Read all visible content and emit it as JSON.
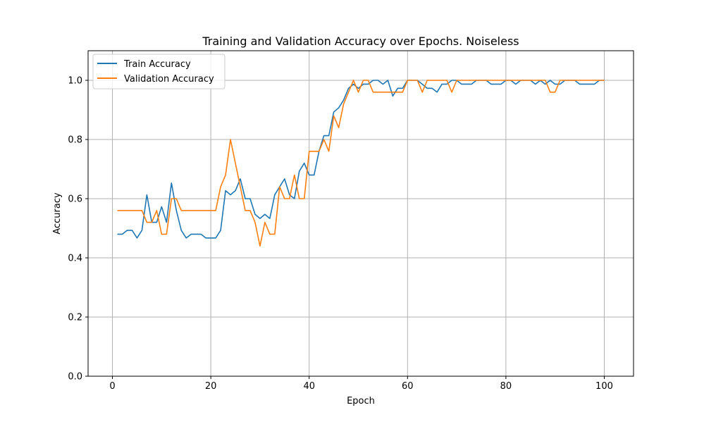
{
  "chart_data": {
    "type": "line",
    "title": "Training and Validation Accuracy over Epochs. Noiseless",
    "xlabel": "Epoch",
    "ylabel": "Accuracy",
    "xlim": [
      -4.95,
      105.95
    ],
    "ylim": [
      0,
      1.1
    ],
    "xticks": [
      0,
      20,
      40,
      60,
      80,
      100
    ],
    "yticks": [
      0.0,
      0.2,
      0.4,
      0.6,
      0.8,
      1.0
    ],
    "xtick_labels": [
      "0",
      "20",
      "40",
      "60",
      "80",
      "100"
    ],
    "ytick_labels": [
      "0.0",
      "0.2",
      "0.4",
      "0.6",
      "0.8",
      "1.0"
    ],
    "grid": true,
    "legend_position": "top-left",
    "x": [
      1,
      2,
      3,
      4,
      5,
      6,
      7,
      8,
      9,
      10,
      11,
      12,
      13,
      14,
      15,
      16,
      17,
      18,
      19,
      20,
      21,
      22,
      23,
      24,
      25,
      26,
      27,
      28,
      29,
      30,
      31,
      32,
      33,
      34,
      35,
      36,
      37,
      38,
      39,
      40,
      41,
      42,
      43,
      44,
      45,
      46,
      47,
      48,
      49,
      50,
      51,
      52,
      53,
      54,
      55,
      56,
      57,
      58,
      59,
      60,
      61,
      62,
      63,
      64,
      65,
      66,
      67,
      68,
      69,
      70,
      71,
      72,
      73,
      74,
      75,
      76,
      77,
      78,
      79,
      80,
      81,
      82,
      83,
      84,
      85,
      86,
      87,
      88,
      89,
      90,
      91,
      92,
      93,
      94,
      95,
      96,
      97,
      98,
      99,
      100
    ],
    "series": [
      {
        "name": "Train Accuracy",
        "color": "#1f77b4",
        "values": [
          0.48,
          0.48,
          0.493,
          0.493,
          0.467,
          0.493,
          0.613,
          0.52,
          0.52,
          0.573,
          0.52,
          0.653,
          0.56,
          0.493,
          0.467,
          0.48,
          0.48,
          0.48,
          0.467,
          0.467,
          0.467,
          0.493,
          0.627,
          0.613,
          0.627,
          0.667,
          0.6,
          0.6,
          0.547,
          0.533,
          0.547,
          0.533,
          0.613,
          0.64,
          0.667,
          0.613,
          0.6,
          0.693,
          0.72,
          0.68,
          0.68,
          0.76,
          0.813,
          0.813,
          0.893,
          0.907,
          0.933,
          0.973,
          0.987,
          0.973,
          0.987,
          0.987,
          1.0,
          1.0,
          0.987,
          1.0,
          0.947,
          0.973,
          0.973,
          1.0,
          1.0,
          1.0,
          0.987,
          0.973,
          0.973,
          0.96,
          0.987,
          0.987,
          1.0,
          1.0,
          0.987,
          0.987,
          0.987,
          1.0,
          1.0,
          1.0,
          0.987,
          0.987,
          0.987,
          1.0,
          1.0,
          0.987,
          1.0,
          1.0,
          1.0,
          0.987,
          1.0,
          0.987,
          1.0,
          0.987,
          0.987,
          1.0,
          1.0,
          1.0,
          0.987,
          0.987,
          0.987,
          0.987,
          1.0,
          1.0
        ]
      },
      {
        "name": "Validation Accuracy",
        "color": "#ff7f0e",
        "values": [
          0.56,
          0.56,
          0.56,
          0.56,
          0.56,
          0.56,
          0.52,
          0.52,
          0.56,
          0.48,
          0.48,
          0.6,
          0.6,
          0.56,
          0.56,
          0.56,
          0.56,
          0.56,
          0.56,
          0.56,
          0.56,
          0.64,
          0.68,
          0.8,
          0.72,
          0.64,
          0.56,
          0.56,
          0.52,
          0.44,
          0.52,
          0.48,
          0.48,
          0.64,
          0.6,
          0.6,
          0.68,
          0.6,
          0.6,
          0.76,
          0.76,
          0.76,
          0.8,
          0.76,
          0.88,
          0.84,
          0.92,
          0.96,
          1.0,
          0.96,
          1.0,
          1.0,
          0.96,
          0.96,
          0.96,
          0.96,
          0.96,
          0.96,
          0.96,
          1.0,
          1.0,
          1.0,
          0.96,
          1.0,
          1.0,
          1.0,
          1.0,
          1.0,
          0.96,
          1.0,
          1.0,
          1.0,
          1.0,
          1.0,
          1.0,
          1.0,
          1.0,
          1.0,
          1.0,
          1.0,
          1.0,
          1.0,
          1.0,
          1.0,
          1.0,
          1.0,
          1.0,
          1.0,
          0.96,
          0.96,
          1.0,
          1.0,
          1.0,
          1.0,
          1.0,
          1.0,
          1.0,
          1.0,
          1.0,
          1.0
        ]
      }
    ]
  }
}
